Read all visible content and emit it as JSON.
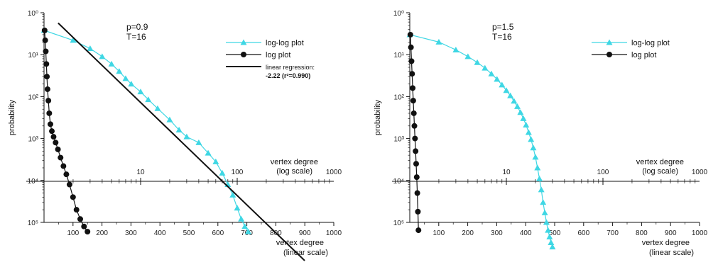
{
  "chart_data": [
    {
      "type": "line",
      "ylabel": "probability",
      "xlabel_linear": [
        "vertex degree",
        "(linear scale)"
      ],
      "xlabel_log": [
        "vertex degree",
        "(log scale)"
      ],
      "annotation": [
        "p=0.9",
        "T=16"
      ],
      "y_scale": "log",
      "y_ticks": [
        "10⁰",
        "10¹",
        "10²",
        "10³",
        "10⁴",
        "10⁵"
      ],
      "x_linear_ticks": [
        "100",
        "200",
        "300",
        "400",
        "500",
        "600",
        "700",
        "800",
        "900",
        "1000"
      ],
      "x_linear_range": [
        0,
        1000
      ],
      "x_log_ticks": [
        "10",
        "100",
        "1000"
      ],
      "x_log_range": [
        1,
        1000
      ],
      "legend_position": "top-right",
      "series": [
        {
          "name": "log-log plot",
          "axis": "log",
          "color": "#3fd7e4",
          "marker": "triangle",
          "x": [
            1,
            2,
            3,
            4,
            5,
            6,
            7,
            8,
            10,
            12,
            15,
            20,
            25,
            30,
            40,
            50,
            60,
            70,
            80,
            90,
            100,
            110,
            120,
            130
          ],
          "y": [
            0.38,
            0.22,
            0.14,
            0.09,
            0.06,
            0.04,
            0.027,
            0.02,
            0.013,
            0.0085,
            0.0052,
            0.0028,
            0.0016,
            0.0011,
            0.0008,
            0.00045,
            0.00028,
            0.00015,
            8e-05,
            4.5e-05,
            2.2e-05,
            1.2e-05,
            8e-06,
            6e-06
          ]
        },
        {
          "name": "log plot",
          "axis": "linear",
          "color": "#111111",
          "marker": "circle",
          "x": [
            2,
            4,
            6,
            8,
            10,
            12,
            15,
            18,
            22,
            27,
            33,
            40,
            48,
            57,
            67,
            77,
            88,
            100,
            112,
            125,
            138,
            150
          ],
          "y": [
            0.38,
            0.22,
            0.12,
            0.06,
            0.03,
            0.015,
            0.008,
            0.004,
            0.0022,
            0.0015,
            0.0011,
            0.0008,
            0.00055,
            0.00035,
            0.00022,
            0.00014,
            8e-05,
            4e-05,
            2e-05,
            1.2e-05,
            8e-06,
            6e-06
          ]
        },
        {
          "name": "linear regression:",
          "note": "-2.22 (r²=0.990)",
          "axis": "log",
          "color": "#111111",
          "marker": "none",
          "slope": -2.22,
          "intercept_at_1": 1.2,
          "x_extent": [
            1.4,
            500
          ]
        }
      ]
    },
    {
      "type": "line",
      "ylabel": "probability",
      "xlabel_linear": [
        "vertex degree",
        "(linear scale)"
      ],
      "xlabel_log": [
        "vertex degree",
        "(log scale)"
      ],
      "annotation": [
        "p=1.5",
        "T=16"
      ],
      "y_scale": "log",
      "y_ticks": [
        "10⁰",
        "10¹",
        "10²",
        "10³",
        "10⁴",
        "10⁵"
      ],
      "x_linear_ticks": [
        "100",
        "200",
        "300",
        "400",
        "500",
        "600",
        "700",
        "800",
        "900",
        "1000"
      ],
      "x_linear_range": [
        0,
        1000
      ],
      "x_log_ticks": [
        "10",
        "100",
        "1000"
      ],
      "x_log_range": [
        1,
        1000
      ],
      "legend_position": "top-right",
      "series": [
        {
          "name": "log-log plot",
          "axis": "log",
          "color": "#3fd7e4",
          "marker": "triangle",
          "x": [
            1,
            2,
            3,
            4,
            5,
            6,
            7,
            8,
            9,
            10,
            11,
            12,
            13,
            14,
            15,
            16,
            17,
            18,
            19,
            20,
            21,
            22,
            23,
            24,
            25,
            26,
            27,
            28,
            29,
            30
          ],
          "y": [
            0.3,
            0.2,
            0.13,
            0.09,
            0.065,
            0.048,
            0.035,
            0.026,
            0.019,
            0.014,
            0.0105,
            0.0078,
            0.0058,
            0.0042,
            0.003,
            0.0021,
            0.0014,
            0.00095,
            0.0006,
            0.00036,
            0.0002,
            0.00011,
            6e-05,
            3e-05,
            1.7e-05,
            1e-05,
            6.5e-06,
            4.5e-06,
            3.3e-06,
            2.6e-06
          ]
        },
        {
          "name": "log plot",
          "axis": "linear",
          "color": "#111111",
          "marker": "circle",
          "x": [
            2,
            4,
            6,
            8,
            10,
            12,
            14,
            16,
            18,
            20,
            22,
            24,
            26,
            28,
            30
          ],
          "y": [
            0.3,
            0.15,
            0.07,
            0.035,
            0.016,
            0.008,
            0.004,
            0.002,
            0.001,
            0.0005,
            0.00025,
            0.00012,
            5e-05,
            1.8e-05,
            6.5e-06
          ]
        }
      ]
    }
  ]
}
